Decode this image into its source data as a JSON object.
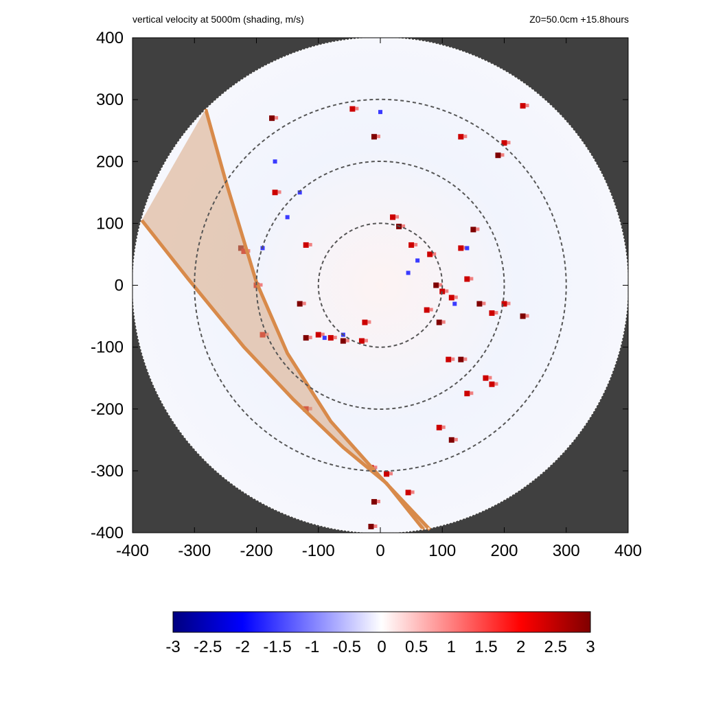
{
  "header": {
    "title": "vertical velocity at 5000m (shading, m/s)",
    "subtitle": "Z0=50.0cm  +15.8hours"
  },
  "chart_data": {
    "type": "heatmap",
    "title": "vertical velocity at 5000m (shading, m/s)",
    "subtitle": "Z0=50.0cm  +15.8hours",
    "xlabel": "",
    "ylabel": "",
    "xlim": [
      -400,
      400
    ],
    "ylim": [
      -400,
      400
    ],
    "x_ticks": [
      "-400",
      "-300",
      "-200",
      "-100",
      "0",
      "100",
      "200",
      "300",
      "400"
    ],
    "y_ticks": [
      "400",
      "300",
      "200",
      "100",
      "0",
      "-100",
      "-200",
      "-300",
      "-400"
    ],
    "domain_radius": 400,
    "range_rings": [
      100,
      200,
      300
    ],
    "colorbar": {
      "min": -3,
      "max": 3,
      "tick_labels": [
        "-3",
        "-2.5",
        "-2",
        "-1.5",
        "-1",
        "-0.5",
        "0",
        "0.5",
        "1",
        "1.5",
        "2",
        "2.5",
        "3"
      ],
      "colors": [
        "#00007f",
        "#0000ff",
        "#ffffff",
        "#ff0000",
        "#7f0000"
      ]
    },
    "swath": {
      "edge_color": "#d88a4a",
      "fill_color": "#d8a882",
      "edge_a": [
        [
          -282,
          285
        ],
        [
          -250,
          170
        ],
        [
          -200,
          5
        ],
        [
          -150,
          -110
        ],
        [
          -80,
          -220
        ],
        [
          0,
          -310
        ],
        [
          80,
          -395
        ]
      ],
      "edge_b": [
        [
          -385,
          105
        ],
        [
          -310,
          10
        ],
        [
          -220,
          -100
        ],
        [
          -140,
          -185
        ],
        [
          -60,
          -262
        ],
        [
          10,
          -320
        ],
        [
          70,
          -395
        ]
      ]
    },
    "updraft_cells": [
      [
        -225,
        60
      ],
      [
        -220,
        55
      ],
      [
        -80,
        -85
      ],
      [
        -60,
        -90
      ],
      [
        -30,
        -90
      ],
      [
        -100,
        -80
      ],
      [
        -120,
        -85
      ],
      [
        50,
        65
      ],
      [
        80,
        50
      ],
      [
        90,
        0
      ],
      [
        100,
        -10
      ],
      [
        75,
        -40
      ],
      [
        95,
        -60
      ],
      [
        115,
        -20
      ],
      [
        140,
        10
      ],
      [
        160,
        -30
      ],
      [
        170,
        -150
      ],
      [
        180,
        -160
      ],
      [
        150,
        90
      ],
      [
        130,
        60
      ],
      [
        20,
        110
      ],
      [
        30,
        95
      ],
      [
        -25,
        -60
      ],
      [
        110,
        -120
      ],
      [
        130,
        -120
      ],
      [
        140,
        -175
      ],
      [
        95,
        -230
      ],
      [
        115,
        -250
      ],
      [
        -15,
        -295
      ],
      [
        10,
        -305
      ],
      [
        -10,
        -350
      ],
      [
        -170,
        150
      ],
      [
        -200,
        0
      ],
      [
        -130,
        -30
      ],
      [
        -120,
        65
      ],
      [
        -45,
        285
      ],
      [
        -10,
        240
      ],
      [
        200,
        230
      ],
      [
        230,
        290
      ],
      [
        190,
        210
      ],
      [
        130,
        240
      ],
      [
        -120,
        -200
      ],
      [
        -15,
        -390
      ],
      [
        180,
        -45
      ],
      [
        200,
        -30
      ],
      [
        230,
        -50
      ],
      [
        45,
        -335
      ],
      [
        -190,
        -80
      ],
      [
        -175,
        270
      ]
    ],
    "downdraft_cells": [
      [
        -90,
        -85
      ],
      [
        -60,
        -80
      ],
      [
        -190,
        60
      ],
      [
        -150,
        110
      ],
      [
        60,
        40
      ],
      [
        120,
        -30
      ],
      [
        140,
        60
      ],
      [
        -170,
        200
      ],
      [
        -130,
        150
      ],
      [
        -10,
        -300
      ],
      [
        0,
        280
      ],
      [
        45,
        20
      ]
    ]
  }
}
